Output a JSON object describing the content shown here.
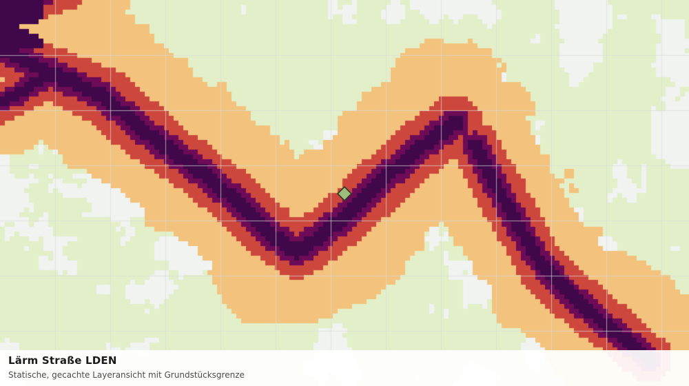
{
  "map": {
    "title": "Lärm Straße LDEN",
    "subtitle": "Statische, gecachte Layeransicht mit Grundstücksgrenze",
    "noise_classes": [
      {
        "level": 1,
        "color": "#e3efc8"
      },
      {
        "level": 2,
        "color": "#f3c27c"
      },
      {
        "level": 3,
        "color": "#cd473d"
      },
      {
        "level": 4,
        "color": "#6d0b57"
      },
      {
        "level": 5,
        "color": "#40084a"
      }
    ],
    "background_color": "#f1f3f1",
    "grid_color": "#d8dcd8",
    "parcel_marker": {
      "fill": "#9fbd7a",
      "stroke": "#2e3b22",
      "icon": "parcel-diamond-icon"
    }
  }
}
